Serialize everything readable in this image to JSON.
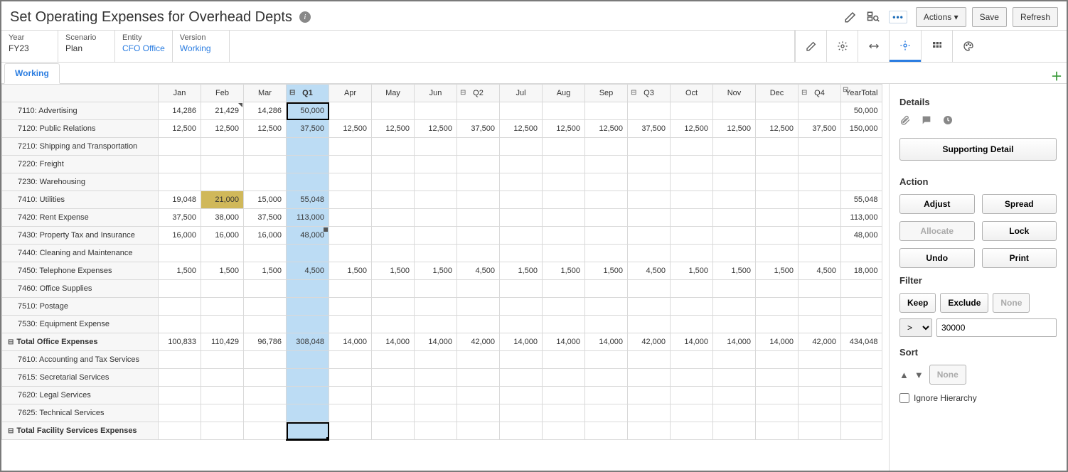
{
  "header": {
    "title": "Set Operating Expenses for Overhead Depts",
    "actions_label": "Actions",
    "save_label": "Save",
    "refresh_label": "Refresh"
  },
  "pov": {
    "year": {
      "label": "Year",
      "value": "FY23"
    },
    "scenario": {
      "label": "Scenario",
      "value": "Plan"
    },
    "entity": {
      "label": "Entity",
      "value": "CFO Office"
    },
    "version": {
      "label": "Version",
      "value": "Working"
    }
  },
  "tabs": {
    "working": "Working"
  },
  "columns": [
    "Jan",
    "Feb",
    "Mar",
    "Q1",
    "Apr",
    "May",
    "Jun",
    "Q2",
    "Jul",
    "Aug",
    "Sep",
    "Q3",
    "Oct",
    "Nov",
    "Dec",
    "Q4",
    "YearTotal"
  ],
  "quarter_cols": [
    "Q1",
    "Q2",
    "Q3",
    "Q4",
    "YearTotal"
  ],
  "selected_col": "Q1",
  "rows": [
    {
      "label": "7110: Advertising",
      "cells": {
        "Jan": "14,286",
        "Feb": "21,429",
        "Mar": "14,286",
        "Q1": "50,000",
        "YearTotal": "50,000"
      },
      "feb_note": true,
      "q1_sel": true
    },
    {
      "label": "7120: Public Relations",
      "cells": {
        "Jan": "12,500",
        "Feb": "12,500",
        "Mar": "12,500",
        "Q1": "37,500",
        "Apr": "12,500",
        "May": "12,500",
        "Jun": "12,500",
        "Q2": "37,500",
        "Jul": "12,500",
        "Aug": "12,500",
        "Sep": "12,500",
        "Q3": "37,500",
        "Oct": "12,500",
        "Nov": "12,500",
        "Dec": "12,500",
        "Q4": "37,500",
        "YearTotal": "150,000"
      }
    },
    {
      "label": "7210: Shipping and Transportation",
      "cells": {}
    },
    {
      "label": "7220: Freight",
      "cells": {}
    },
    {
      "label": "7230: Warehousing",
      "cells": {}
    },
    {
      "label": "7410: Utilities",
      "cells": {
        "Jan": "19,048",
        "Feb": "21,000",
        "Mar": "15,000",
        "Q1": "55,048",
        "YearTotal": "55,048"
      },
      "feb_dirty": true
    },
    {
      "label": "7420: Rent Expense",
      "cells": {
        "Jan": "37,500",
        "Feb": "38,000",
        "Mar": "37,500",
        "Q1": "113,000",
        "YearTotal": "113,000"
      }
    },
    {
      "label": "7430: Property Tax and Insurance",
      "cells": {
        "Jan": "16,000",
        "Feb": "16,000",
        "Mar": "16,000",
        "Q1": "48,000",
        "YearTotal": "48,000"
      },
      "q1_anno": true
    },
    {
      "label": "7440: Cleaning and Maintenance",
      "cells": {}
    },
    {
      "label": "7450: Telephone Expenses",
      "cells": {
        "Jan": "1,500",
        "Feb": "1,500",
        "Mar": "1,500",
        "Q1": "4,500",
        "Apr": "1,500",
        "May": "1,500",
        "Jun": "1,500",
        "Q2": "4,500",
        "Jul": "1,500",
        "Aug": "1,500",
        "Sep": "1,500",
        "Q3": "4,500",
        "Oct": "1,500",
        "Nov": "1,500",
        "Dec": "1,500",
        "Q4": "4,500",
        "YearTotal": "18,000"
      }
    },
    {
      "label": "7460: Office Supplies",
      "cells": {}
    },
    {
      "label": "7510: Postage",
      "cells": {}
    },
    {
      "label": "7530: Equipment Expense",
      "cells": {}
    },
    {
      "label": "Total Office Expenses",
      "total": true,
      "cells": {
        "Jan": "100,833",
        "Feb": "110,429",
        "Mar": "96,786",
        "Q1": "308,048",
        "Apr": "14,000",
        "May": "14,000",
        "Jun": "14,000",
        "Q2": "42,000",
        "Jul": "14,000",
        "Aug": "14,000",
        "Sep": "14,000",
        "Q3": "42,000",
        "Oct": "14,000",
        "Nov": "14,000",
        "Dec": "14,000",
        "Q4": "42,000",
        "YearTotal": "434,048"
      }
    },
    {
      "label": "7610: Accounting and Tax Services",
      "cells": {}
    },
    {
      "label": "7615: Secretarial Services",
      "cells": {}
    },
    {
      "label": "7620: Legal Services",
      "cells": {}
    },
    {
      "label": "7625: Technical Services",
      "cells": {}
    },
    {
      "label": "Total Facility Services Expenses",
      "total": true,
      "cells": {},
      "lastsel": true
    }
  ],
  "details": {
    "heading": "Details",
    "supporting_detail": "Supporting Detail",
    "action_heading": "Action",
    "adjust": "Adjust",
    "spread": "Spread",
    "allocate": "Allocate",
    "lock": "Lock",
    "undo": "Undo",
    "print": "Print",
    "filter_heading": "Filter",
    "keep": "Keep",
    "exclude": "Exclude",
    "none": "None",
    "filter_op": ">",
    "filter_val": "30000",
    "sort_heading": "Sort",
    "sort_none": "None",
    "ignore_hierarchy": "Ignore Hierarchy"
  },
  "colors": {
    "selected_bg": "#bcdcf4",
    "dirty_bg": "#d0b85a",
    "link": "#2b7de1",
    "border": "#d9d9d9"
  }
}
